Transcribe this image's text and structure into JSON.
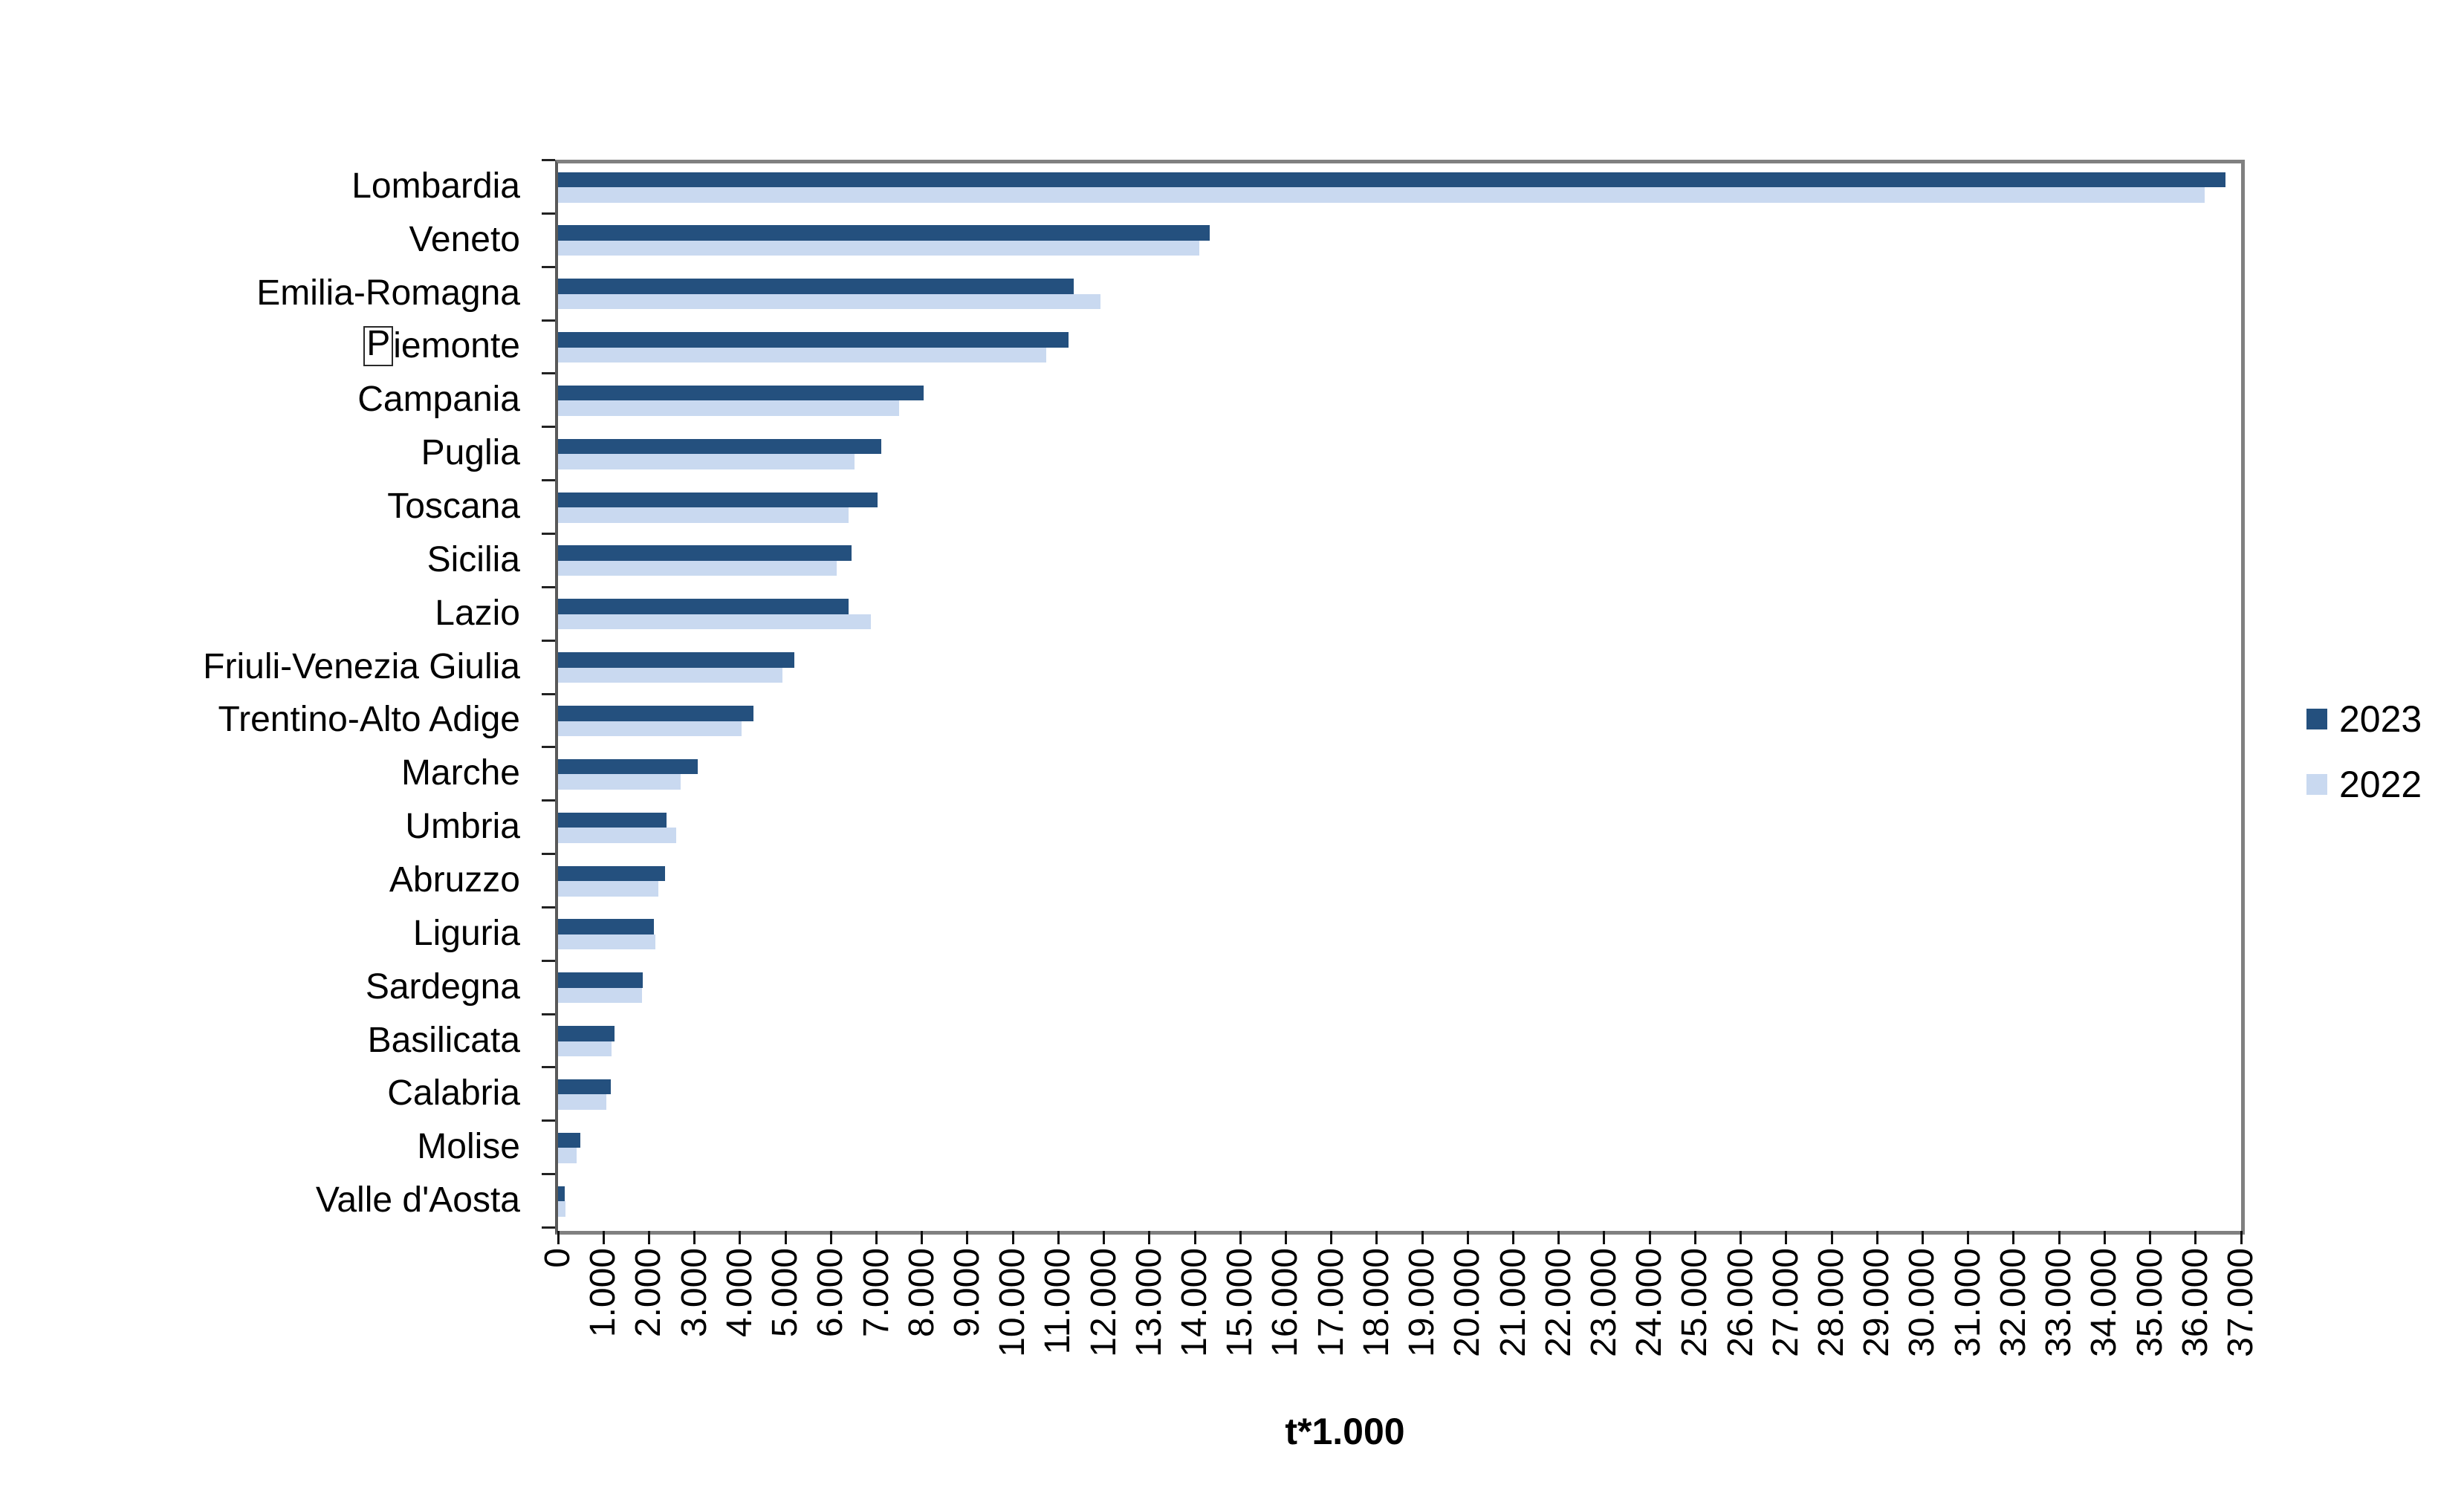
{
  "figure": {
    "background_color": "#FFFFFF",
    "plot_border_color": "#808080",
    "axis_line_color": "#595959",
    "tick_color": "#111111"
  },
  "legend": {
    "position": "right",
    "items": [
      {
        "label": "2023",
        "color": "#24507E"
      },
      {
        "label": "2022",
        "color": "#C9D9F0"
      }
    ]
  },
  "x_axis": {
    "title": "t*1.000",
    "tick_labels": [
      "0",
      "1.000",
      "2.000",
      "3.000",
      "4.000",
      "5.000",
      "6.000",
      "7.000",
      "8.000",
      "9.000",
      "10.000",
      "11.000",
      "12.000",
      "13.000",
      "14.000",
      "15.000",
      "16.000",
      "17.000",
      "18.000",
      "19.000",
      "20.000",
      "21.000",
      "22.000",
      "23.000",
      "24.000",
      "25.000",
      "26.000",
      "27.000",
      "28.000",
      "29.000",
      "30.000",
      "31.000",
      "32.000",
      "33.000",
      "34.000",
      "35.000",
      "36.000",
      "37.000"
    ]
  },
  "chart_data": {
    "type": "bar",
    "orientation": "horizontal",
    "title": "",
    "xlabel": "t*1.000",
    "ylabel": "",
    "xlim": [
      0,
      37000
    ],
    "grid": false,
    "legend_position": "right",
    "categories": [
      "Lombardia",
      "Veneto",
      "Emilia-Romagna",
      "Piemonte",
      "Campania",
      "Puglia",
      "Toscana",
      "Sicilia",
      "Lazio",
      "Friuli-Venezia Giulia",
      "Trentino-Alto Adige",
      "Marche",
      "Umbria",
      "Abruzzo",
      "Liguria",
      "Sardegna",
      "Basilicata",
      "Calabria",
      "Molise",
      "Valle d'Aosta"
    ],
    "series": [
      {
        "name": "2023",
        "color": "#24507E",
        "values": [
          36650,
          14330,
          11330,
          11230,
          8040,
          7100,
          7030,
          6450,
          6390,
          5190,
          4300,
          3070,
          2380,
          2360,
          2100,
          1870,
          1240,
          1160,
          495,
          155
        ]
      },
      {
        "name": "2022",
        "color": "#C9D9F0",
        "values": [
          36200,
          14100,
          11920,
          10740,
          7500,
          6510,
          6380,
          6120,
          6870,
          4930,
          4040,
          2700,
          2590,
          2210,
          2140,
          1840,
          1180,
          1060,
          405,
          170
        ]
      }
    ]
  },
  "artifacts": {
    "boxed_first_letter_region": "Piemonte"
  }
}
